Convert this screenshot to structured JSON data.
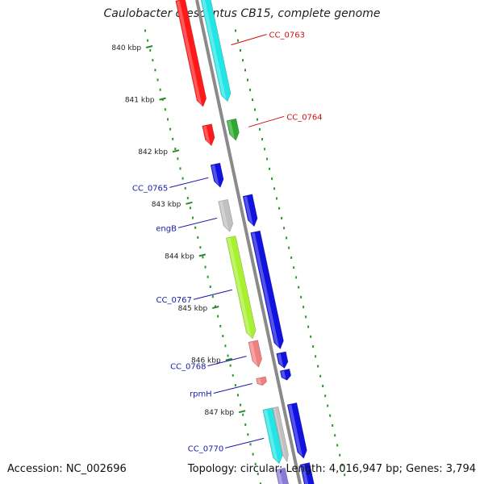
{
  "title": "Caulobacter crescentus CB15, complete genome",
  "footer": {
    "accession": "Accession: NC_002696",
    "summary": "Topology: circular; Length: 4,016,947 bp; Genes: 3,794"
  },
  "colors": {
    "backbone": "#8a8a8a",
    "dots_inner": "#2a9a2a",
    "dots_outer": "#2a9a2a",
    "label_blue": "#1a1aa8",
    "label_red": "#cc1111"
  },
  "ticks": [
    "840 kbp",
    "841 kbp",
    "842 kbp",
    "843 kbp",
    "844 kbp",
    "845 kbp",
    "846 kbp",
    "847 kbp"
  ],
  "genes": [
    {
      "name": "CC_0763",
      "color": "#ff1a1a",
      "strand": "lower",
      "start_kbp": 839.05,
      "end_kbp": 841.1
    },
    {
      "name": "",
      "color": "#22e5e5",
      "strand": "upper",
      "start_kbp": 839.05,
      "end_kbp": 841.1
    },
    {
      "name": "CC_0764",
      "color": "#ff1a1a",
      "strand": "lower",
      "start_kbp": 841.45,
      "end_kbp": 841.85
    },
    {
      "name": "",
      "color": "#2ea82e",
      "strand": "upper",
      "start_kbp": 841.45,
      "end_kbp": 841.85
    },
    {
      "name": "CC_0765",
      "color": "#1212e0",
      "strand": "lower",
      "start_kbp": 842.2,
      "end_kbp": 842.65
    },
    {
      "name": "engB",
      "color": "#c0c0c0",
      "strand": "lower",
      "start_kbp": 842.9,
      "end_kbp": 843.5
    },
    {
      "name": "",
      "color": "#1212e0",
      "strand": "upper",
      "start_kbp": 842.9,
      "end_kbp": 843.5
    },
    {
      "name": "CC_0767",
      "color": "#a8f030",
      "strand": "lower",
      "start_kbp": 843.6,
      "end_kbp": 845.55
    },
    {
      "name": "",
      "color": "#1212e0",
      "strand": "upper",
      "start_kbp": 843.6,
      "end_kbp": 845.85
    },
    {
      "name": "CC_0768",
      "color": "#f08080",
      "strand": "lower",
      "start_kbp": 845.6,
      "end_kbp": 846.1
    },
    {
      "name": "",
      "color": "#1212e0",
      "strand": "upper",
      "start_kbp": 845.92,
      "end_kbp": 846.22
    },
    {
      "name": "rpmH",
      "color": "#f08080",
      "strand": "lower",
      "start_kbp": 846.3,
      "end_kbp": 846.45
    },
    {
      "name": "",
      "color": "#1212e0",
      "strand": "upper",
      "start_kbp": 846.25,
      "end_kbp": 846.45
    },
    {
      "name": "CC_0770",
      "color": "#22e5e5",
      "strand": "lower",
      "start_kbp": 846.9,
      "end_kbp": 847.95
    },
    {
      "name": "",
      "color": "#c0c0c0",
      "strand": "mid",
      "start_kbp": 846.9,
      "end_kbp": 847.95
    },
    {
      "name": "",
      "color": "#1212e0",
      "strand": "upper",
      "start_kbp": 846.9,
      "end_kbp": 847.95
    },
    {
      "name": "",
      "color": "#8a7ad8",
      "strand": "lower",
      "start_kbp": 848.05,
      "end_kbp": 848.8
    },
    {
      "name": "",
      "color": "#1212e0",
      "strand": "upper",
      "start_kbp": 848.05,
      "end_kbp": 848.8
    }
  ]
}
